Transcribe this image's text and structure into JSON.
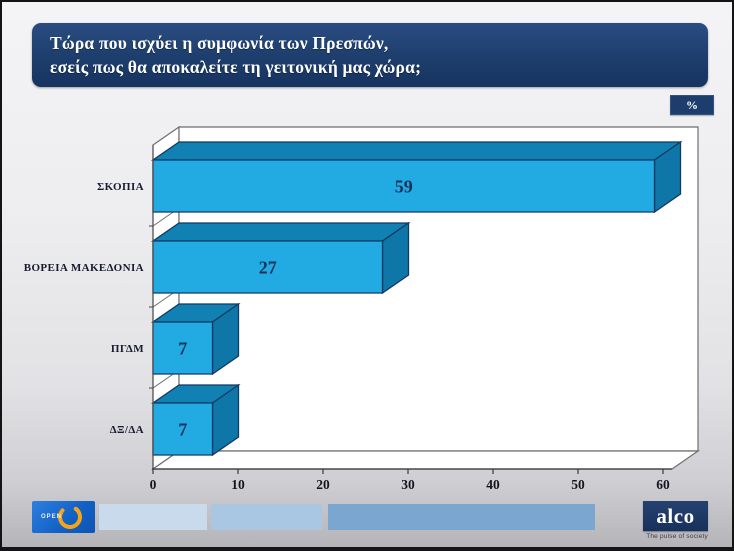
{
  "header": {
    "title_line1": "Τώρα που ισχύει η συμφωνία των Πρεσπών,",
    "title_line2": "εσείς πως θα αποκαλείτε τη γειτονική μας χώρα;",
    "unit_badge": "%"
  },
  "chart_data": {
    "type": "bar",
    "orientation": "horizontal",
    "style": "3d",
    "title": "Τώρα που ισχύει η συμφωνία των Πρεσπών, εσείς πως θα αποκαλείτε τη γειτονική μας χώρα;",
    "unit": "%",
    "categories": [
      "ΣΚΟΠΙΑ",
      "ΒΟΡΕΙΑ ΜΑΚΕΔΟΝΙΑ",
      "ΠΓΔΜ",
      "ΔΞ/ΔΑ"
    ],
    "values": [
      59,
      27,
      7,
      7
    ],
    "x_ticks": [
      0,
      10,
      20,
      30,
      40,
      50,
      60
    ],
    "xlim": [
      0,
      60
    ],
    "grid": false,
    "legend": false,
    "colors": {
      "bar_front": "#22aae2",
      "bar_top": "#1181b4",
      "bar_side": "#0f76a8",
      "bar_outline": "#123a63",
      "value_label": "#14335c",
      "category_label": "#181a30",
      "tick_label": "#14141f",
      "frame_stroke": "#6e6e6e",
      "plot_background": "#ffffff"
    }
  },
  "footer": {
    "open_logo_text": "OPEN",
    "alco_logo_text": "alco",
    "alco_tagline": "The pulse of society",
    "open_accent_color": "#f5a41a",
    "band_colors": [
      "#c9daec",
      "#a9c6e2",
      "#7ba6d0"
    ]
  }
}
